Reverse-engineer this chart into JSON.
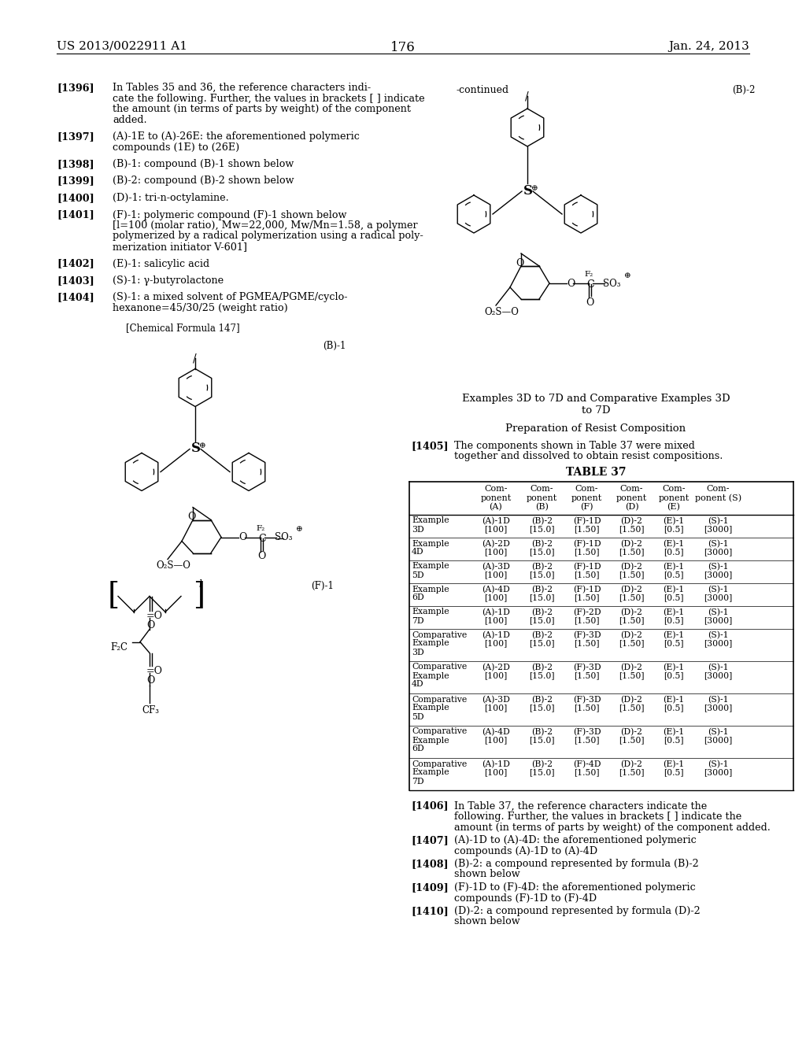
{
  "bg_color": "#ffffff",
  "page_number": "176",
  "header_left": "US 2013/0022911 A1",
  "header_right": "Jan. 24, 2013",
  "left_paragraphs": [
    {
      "tag": "[1396]",
      "lines": [
        "In Tables 35 and 36, the reference characters indi-",
        "cate the following. Further, the values in brackets [ ] indicate",
        "the amount (in terms of parts by weight) of the component",
        "added."
      ]
    },
    {
      "tag": "[1397]",
      "lines": [
        "(A)-1E to (A)-26E: the aforementioned polymeric",
        "compounds (1E) to (26E)"
      ]
    },
    {
      "tag": "[1398]",
      "lines": [
        "(B)-1: compound (B)-1 shown below"
      ]
    },
    {
      "tag": "[1399]",
      "lines": [
        "(B)-2: compound (B)-2 shown below"
      ]
    },
    {
      "tag": "[1400]",
      "lines": [
        "(D)-1: tri-n-octylamine."
      ]
    },
    {
      "tag": "[1401]",
      "lines": [
        "(F)-1: polymeric compound (F)-1 shown below",
        "[l=100 (molar ratio), Mw=22,000, Mw/Mn=1.58, a polymer",
        "polymerized by a radical polymerization using a radical poly-",
        "merization initiator V-601]"
      ]
    },
    {
      "tag": "[1402]",
      "lines": [
        "(E)-1: salicylic acid"
      ]
    },
    {
      "tag": "[1403]",
      "lines": [
        "(S)-1: γ-butyrolactone"
      ]
    },
    {
      "tag": "[1404]",
      "lines": [
        "(S)-1: a mixed solvent of PGMEA/PGME/cyclo-",
        "hexanone=45/30/25 (weight ratio)"
      ]
    }
  ],
  "table_title": "TABLE 37",
  "table_col_headers": [
    "Com-\nponent\n(A)",
    "Com-\nponent\n(B)",
    "Com-\nponent\n(F)",
    "Com-\nponent\n(D)",
    "Com-\nponent\n(E)",
    "Com-\nponent (S)"
  ],
  "table_rows": [
    [
      "Example\n3D",
      "(A)-1D\n[100]",
      "(B)-2\n[15.0]",
      "(F)-1D\n[1.50]",
      "(D)-2\n[1.50]",
      "(E)-1\n[0.5]",
      "(S)-1\n[3000]"
    ],
    [
      "Example\n4D",
      "(A)-2D\n[100]",
      "(B)-2\n[15.0]",
      "(F)-1D\n[1.50]",
      "(D)-2\n[1.50]",
      "(E)-1\n[0.5]",
      "(S)-1\n[3000]"
    ],
    [
      "Example\n5D",
      "(A)-3D\n[100]",
      "(B)-2\n[15.0]",
      "(F)-1D\n[1.50]",
      "(D)-2\n[1.50]",
      "(E)-1\n[0.5]",
      "(S)-1\n[3000]"
    ],
    [
      "Example\n6D",
      "(A)-4D\n[100]",
      "(B)-2\n[15.0]",
      "(F)-1D\n[1.50]",
      "(D)-2\n[1.50]",
      "(E)-1\n[0.5]",
      "(S)-1\n[3000]"
    ],
    [
      "Example\n7D",
      "(A)-1D\n[100]",
      "(B)-2\n[15.0]",
      "(F)-2D\n[1.50]",
      "(D)-2\n[1.50]",
      "(E)-1\n[0.5]",
      "(S)-1\n[3000]"
    ],
    [
      "Comparative\nExample\n3D",
      "(A)-1D\n[100]",
      "(B)-2\n[15.0]",
      "(F)-3D\n[1.50]",
      "(D)-2\n[1.50]",
      "(E)-1\n[0.5]",
      "(S)-1\n[3000]"
    ],
    [
      "Comparative\nExample\n4D",
      "(A)-2D\n[100]",
      "(B)-2\n[15.0]",
      "(F)-3D\n[1.50]",
      "(D)-2\n[1.50]",
      "(E)-1\n[0.5]",
      "(S)-1\n[3000]"
    ],
    [
      "Comparative\nExample\n5D",
      "(A)-3D\n[100]",
      "(B)-2\n[15.0]",
      "(F)-3D\n[1.50]",
      "(D)-2\n[1.50]",
      "(E)-1\n[0.5]",
      "(S)-1\n[3000]"
    ],
    [
      "Comparative\nExample\n6D",
      "(A)-4D\n[100]",
      "(B)-2\n[15.0]",
      "(F)-3D\n[1.50]",
      "(D)-2\n[1.50]",
      "(E)-1\n[0.5]",
      "(S)-1\n[3000]"
    ],
    [
      "Comparative\nExample\n7D",
      "(A)-1D\n[100]",
      "(B)-2\n[15.0]",
      "(F)-4D\n[1.50]",
      "(D)-2\n[1.50]",
      "(E)-1\n[0.5]",
      "(S)-1\n[3000]"
    ]
  ],
  "bottom_paragraphs": [
    {
      "tag": "[1406]",
      "lines": [
        "In Table 37, the reference characters indicate the",
        "following. Further, the values in brackets [ ] indicate the",
        "amount (in terms of parts by weight) of the component added."
      ]
    },
    {
      "tag": "[1407]",
      "lines": [
        "(A)-1D to (A)-4D: the aforementioned polymeric",
        "compounds (A)-1D to (A)-4D"
      ]
    },
    {
      "tag": "[1408]",
      "lines": [
        "(B)-2: a compound represented by formula (B)-2",
        "shown below"
      ]
    },
    {
      "tag": "[1409]",
      "lines": [
        "(F)-1D to (F)-4D: the aforementioned polymeric",
        "compounds (F)-1D to (F)-4D"
      ]
    },
    {
      "tag": "[1410]",
      "lines": [
        "(D)-2: a compound represented by formula (D)-2",
        "shown below"
      ]
    }
  ]
}
